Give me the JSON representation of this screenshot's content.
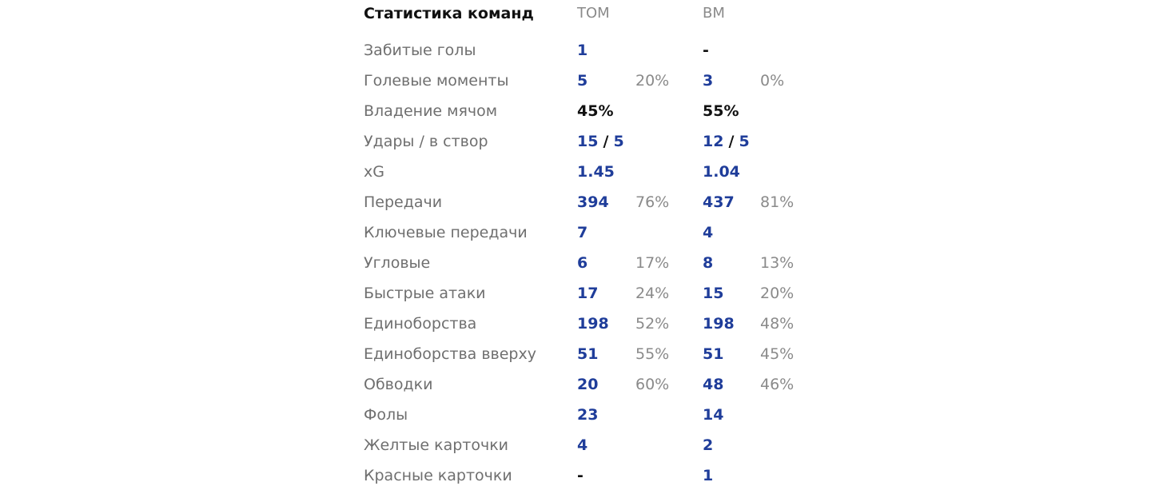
{
  "header": {
    "title": "Статистика команд",
    "team1": "ТОМ",
    "team2": "ВМ"
  },
  "rows": [
    {
      "label": "Забитые голы",
      "t1": "1",
      "p1": "",
      "t2": "-",
      "p2": ""
    },
    {
      "label": "Голевые моменты",
      "t1": "5",
      "p1": "20%",
      "t2": "3",
      "p2": "0%"
    },
    {
      "label": "Владение мячом",
      "t1": "45%",
      "p1": "",
      "t2": "55%",
      "p2": ""
    },
    {
      "label": "Удары / в створ",
      "t1a": "15",
      "t1b": "5",
      "p1": "",
      "t2a": "12",
      "t2b": "5",
      "p2": ""
    },
    {
      "label": "xG",
      "t1": "1.45",
      "p1": "",
      "t2": "1.04",
      "p2": ""
    },
    {
      "label": "Передачи",
      "t1": "394",
      "p1": "76%",
      "t2": "437",
      "p2": "81%"
    },
    {
      "label": "Ключевые передачи",
      "t1": "7",
      "p1": "",
      "t2": "4",
      "p2": ""
    },
    {
      "label": "Угловые",
      "t1": "6",
      "p1": "17%",
      "t2": "8",
      "p2": "13%"
    },
    {
      "label": "Быстрые атаки",
      "t1": "17",
      "p1": "24%",
      "t2": "15",
      "p2": "20%"
    },
    {
      "label": "Единоборства",
      "t1": "198",
      "p1": "52%",
      "t2": "198",
      "p2": "48%"
    },
    {
      "label": "Единоборства вверху",
      "t1": "51",
      "p1": "55%",
      "t2": "51",
      "p2": "45%"
    },
    {
      "label": "Обводки",
      "t1": "20",
      "p1": "60%",
      "t2": "48",
      "p2": "46%"
    },
    {
      "label": "Фолы",
      "t1": "23",
      "p1": "",
      "t2": "14",
      "p2": ""
    },
    {
      "label": "Желтые карточки",
      "t1": "4",
      "p1": "",
      "t2": "2",
      "p2": ""
    },
    {
      "label": "Красные карточки",
      "t1": "-",
      "p1": "",
      "t2": "1",
      "p2": ""
    }
  ],
  "separator": "/",
  "colors": {
    "value": "#1f3d9a",
    "label": "#6f6f6f",
    "muted": "#8a8a8a",
    "dark": "#111111"
  }
}
